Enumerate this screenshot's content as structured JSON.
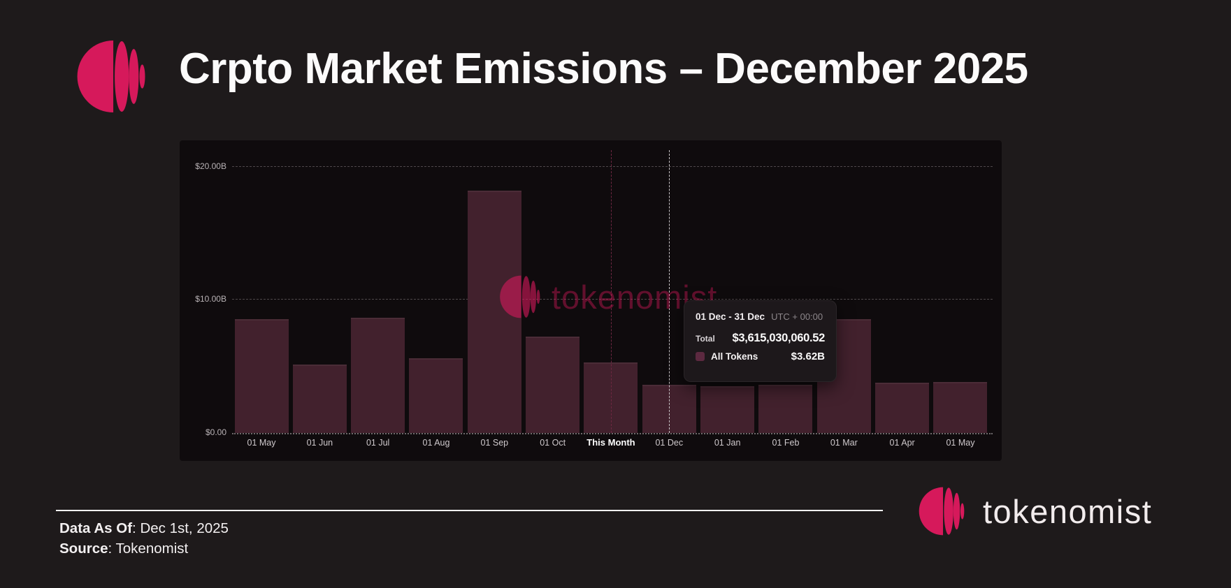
{
  "header": {
    "title": "Crpto Market Emissions – December 2025"
  },
  "brand": {
    "wordmark": "tokenomist",
    "accent_color": "#D6195B"
  },
  "chart_data": {
    "type": "bar",
    "title": "",
    "series_name": "All Tokens",
    "categories": [
      "01 May",
      "01 Jun",
      "01 Jul",
      "01 Aug",
      "01 Sep",
      "01 Oct",
      "This Month",
      "01 Dec",
      "01 Jan",
      "01 Feb",
      "01 Mar",
      "01 Apr",
      "01 May"
    ],
    "values": [
      8.53,
      5.13,
      8.64,
      5.6,
      18.17,
      7.22,
      5.29,
      3.62,
      3.51,
      3.61,
      8.53,
      3.77,
      3.82
    ],
    "unit": "USD billions",
    "y_tick_labels": [
      "$20.00B",
      "$10.00B",
      "$0.00"
    ],
    "ylim": [
      0,
      20
    ],
    "bar_color": "#42212D",
    "grid": "horizontal-dashed",
    "legend_position": "none",
    "highlight_category": "This Month",
    "hover_category": "01 Dec"
  },
  "tooltip": {
    "date_range": "01 Dec - 31 Dec",
    "timezone": "UTC + 00:00",
    "total_label": "Total",
    "total_value": "$3,615,030,060.52",
    "series_label": "All Tokens",
    "series_value": "$3.62B",
    "swatch_color": "#5C2940"
  },
  "watermark": {
    "text": "tokenomist"
  },
  "footer": {
    "data_as_of_label": "Data As Of",
    "data_as_of_value": ": Dec 1st, 2025",
    "source_label": "Source",
    "source_value": ": Tokenomist"
  }
}
